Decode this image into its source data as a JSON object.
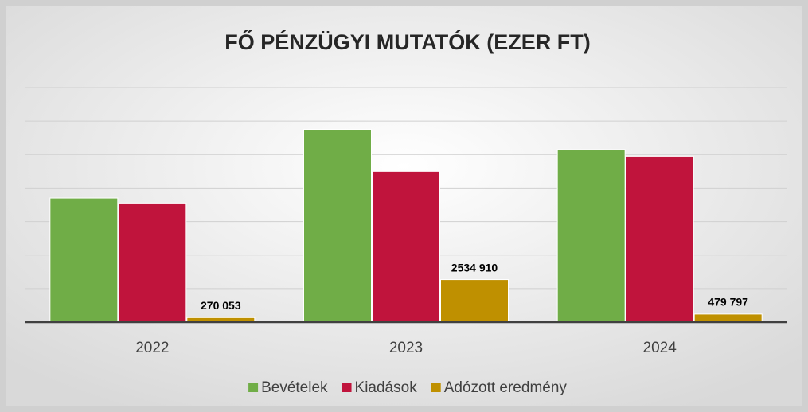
{
  "chart_data": {
    "type": "bar",
    "title": "FŐ PÉNZÜGYI MUTATÓK (EZER FT)",
    "categories": [
      "2022",
      "2023",
      "2024"
    ],
    "series": [
      {
        "name": "Bevételek",
        "color": "#70ad47",
        "values": [
          7400000,
          11500000,
          10300000
        ]
      },
      {
        "name": "Kiadások",
        "color": "#c0143c",
        "values": [
          7100000,
          9000000,
          9900000
        ]
      },
      {
        "name": "Adózott eredmény",
        "color": "#bf9000",
        "values": [
          270053,
          2534910,
          479797
        ],
        "value_labels": [
          "270 053",
          "2534 910",
          "479 797"
        ]
      }
    ],
    "ylim": [
      0,
      14000000
    ],
    "yticks": [
      0,
      2000000,
      4000000,
      6000000,
      8000000,
      10000000,
      12000000,
      14000000
    ],
    "grid": true,
    "legend": "bottom"
  }
}
